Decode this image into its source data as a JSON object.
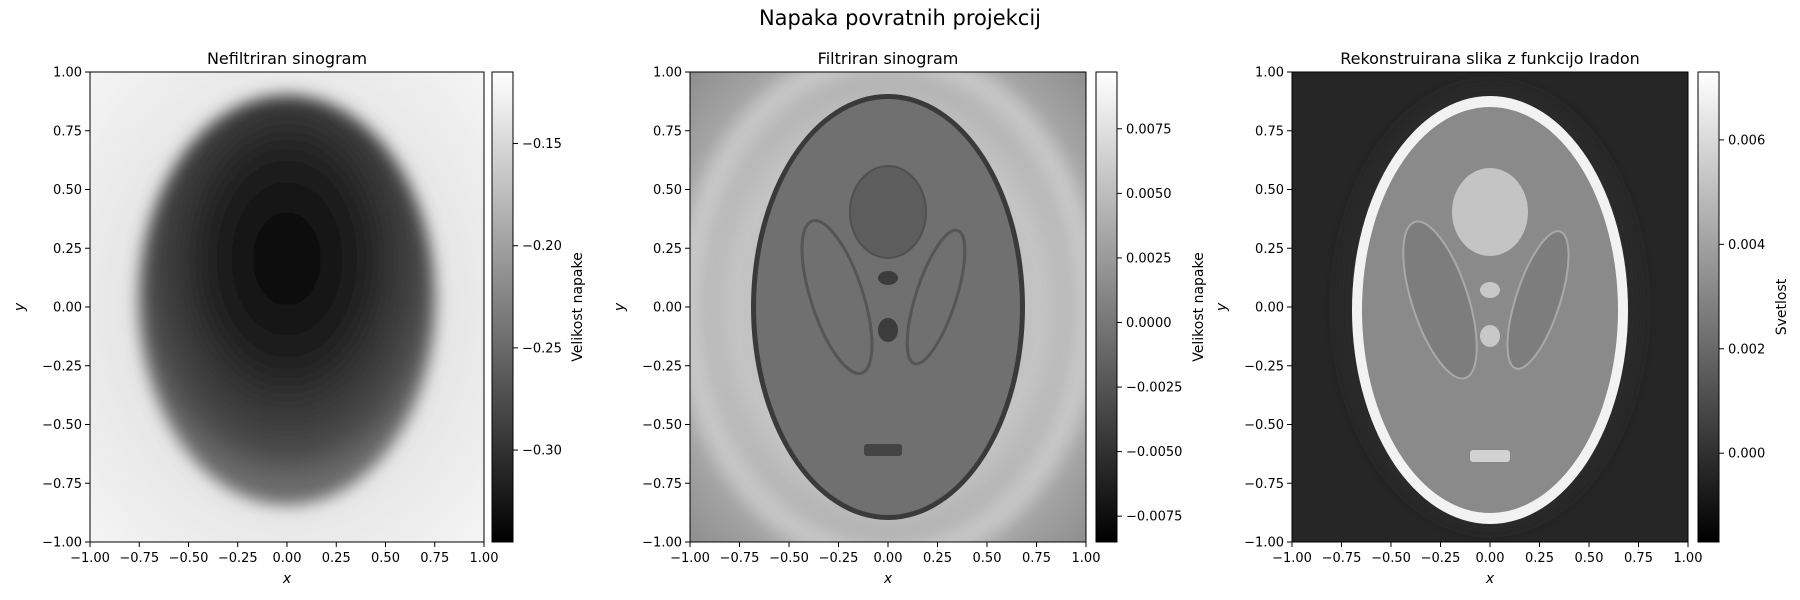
{
  "figure": {
    "title": "Napaka povratnih projekcij"
  },
  "chart_data": [
    {
      "type": "heatmap",
      "title": "Nefiltriran sinogram",
      "xlabel": "x",
      "ylabel": "y",
      "xlim": [
        -1.0,
        1.0
      ],
      "ylim": [
        -1.0,
        1.0
      ],
      "xticks": [
        "−1.00",
        "−0.75",
        "−0.50",
        "−0.25",
        "0.00",
        "0.25",
        "0.50",
        "0.75",
        "1.00"
      ],
      "yticks": [
        "1.00",
        "0.75",
        "0.50",
        "0.25",
        "0.00",
        "−0.25",
        "−0.50",
        "−0.75",
        "−1.00"
      ],
      "colormap": "gray",
      "colorbar": {
        "label": "Velikost napake",
        "vmin": -0.345,
        "vmax": -0.115,
        "ticks": [
          -0.15,
          -0.2,
          -0.25,
          -0.3
        ],
        "tick_labels": [
          "−0.15",
          "−0.20",
          "−0.25",
          "−0.30"
        ]
      }
    },
    {
      "type": "heatmap",
      "title": "Filtriran sinogram",
      "xlabel": "x",
      "ylabel": "y",
      "xlim": [
        -1.0,
        1.0
      ],
      "ylim": [
        -1.0,
        1.0
      ],
      "xticks": [
        "−1.00",
        "−0.75",
        "−0.50",
        "−0.25",
        "0.00",
        "0.25",
        "0.50",
        "0.75",
        "1.00"
      ],
      "yticks": [
        "1.00",
        "0.75",
        "0.50",
        "0.25",
        "0.00",
        "−0.25",
        "−0.50",
        "−0.75",
        "−1.00"
      ],
      "colormap": "gray",
      "colorbar": {
        "label": "Velikost napake",
        "vmin": -0.0085,
        "vmax": 0.0097,
        "ticks": [
          0.0075,
          0.005,
          0.0025,
          0.0,
          -0.0025,
          -0.005,
          -0.0075
        ],
        "tick_labels": [
          "0.0075",
          "0.0050",
          "0.0025",
          "0.0000",
          "−0.0025",
          "−0.0050",
          "−0.0075"
        ]
      }
    },
    {
      "type": "heatmap",
      "title": "Rekonstruirana slika z funkcijo Iradon",
      "xlabel": "x",
      "ylabel": "y",
      "xlim": [
        -1.0,
        1.0
      ],
      "ylim": [
        -1.0,
        1.0
      ],
      "xticks": [
        "−1.00",
        "−0.75",
        "−0.50",
        "−0.25",
        "0.00",
        "0.25",
        "0.50",
        "0.75",
        "1.00"
      ],
      "yticks": [
        "1.00",
        "0.75",
        "0.50",
        "0.25",
        "0.00",
        "−0.25",
        "−0.50",
        "−0.75",
        "−1.00"
      ],
      "colormap": "gray",
      "colorbar": {
        "label": "Svetlost",
        "vmin": -0.0017,
        "vmax": 0.0073,
        "ticks": [
          0.006,
          0.004,
          0.002,
          0.0
        ],
        "tick_labels": [
          "0.006",
          "0.004",
          "0.002",
          "0.000"
        ]
      }
    }
  ]
}
